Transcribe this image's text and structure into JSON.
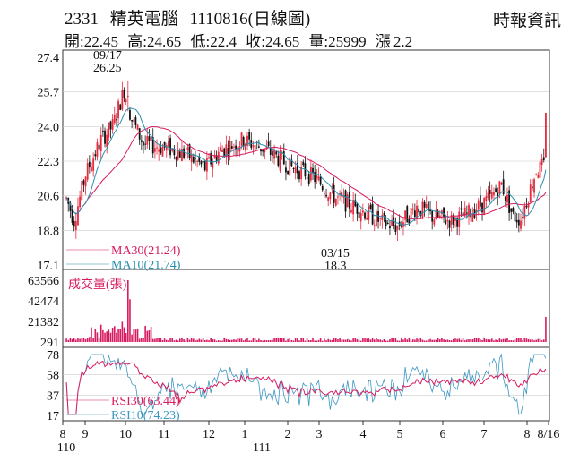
{
  "header": {
    "code": "2331",
    "name": "精英電腦",
    "date": "1110816",
    "chart_kind": "(日線圖)",
    "source": "時報資訊",
    "ohlc": [
      {
        "label": "開:",
        "value": "22.45"
      },
      {
        "label": "高:",
        "value": "24.65"
      },
      {
        "label": "低:",
        "value": "22.4"
      },
      {
        "label": "收:",
        "value": "24.65"
      },
      {
        "label": "量:",
        "value": "25999"
      },
      {
        "label": "漲",
        "value": "2.2"
      }
    ]
  },
  "colors": {
    "up": "#e8293e",
    "down": "#111111",
    "ma30": "#d81b60",
    "ma10": "#2a8fb0",
    "volume": "#d81b60",
    "rsi30": "#d81b60",
    "rsi10": "#3b96c2",
    "grid": "#cccccc",
    "frame": "#333333"
  },
  "chart_data": [
    {
      "type": "candlestick",
      "yticks": [
        "27.4",
        "25.7",
        "24.0",
        "22.3",
        "20.6",
        "18.8",
        "17.1"
      ],
      "ylim": [
        17.1,
        27.4
      ],
      "annotations": [
        {
          "date": "09/17",
          "value": "26.25",
          "kind": "high"
        },
        {
          "date": "03/15",
          "value": "18.3",
          "kind": "low"
        }
      ],
      "series": [
        {
          "name": "MA30",
          "label": "MA30(21.24)",
          "last": 21.24
        },
        {
          "name": "MA10",
          "label": "MA10(21.74)",
          "last": 21.74
        }
      ],
      "last_close": 24.65,
      "last_open": 22.45,
      "last_high": 24.65,
      "last_low": 22.4
    },
    {
      "type": "bar",
      "title": "成交量(張)",
      "yticks": [
        "63566",
        "42474",
        "21382",
        "291"
      ],
      "ylim": [
        291,
        63566
      ],
      "last_volume": 25999
    },
    {
      "type": "line",
      "yticks": [
        "78",
        "58",
        "37",
        "17"
      ],
      "ylim": [
        17,
        78
      ],
      "series": [
        {
          "name": "RSI30",
          "label": "RSI30(63.44)",
          "last": 63.44
        },
        {
          "name": "RSI10",
          "label": "RSI10(74.23)",
          "last": 74.23
        }
      ]
    }
  ],
  "xaxis": {
    "months": [
      "8",
      "9",
      "10",
      "11",
      "12",
      "1",
      "2",
      "3",
      "4",
      "5",
      "6",
      "7",
      "8",
      "8/16"
    ],
    "years": [
      "110",
      "111"
    ]
  }
}
